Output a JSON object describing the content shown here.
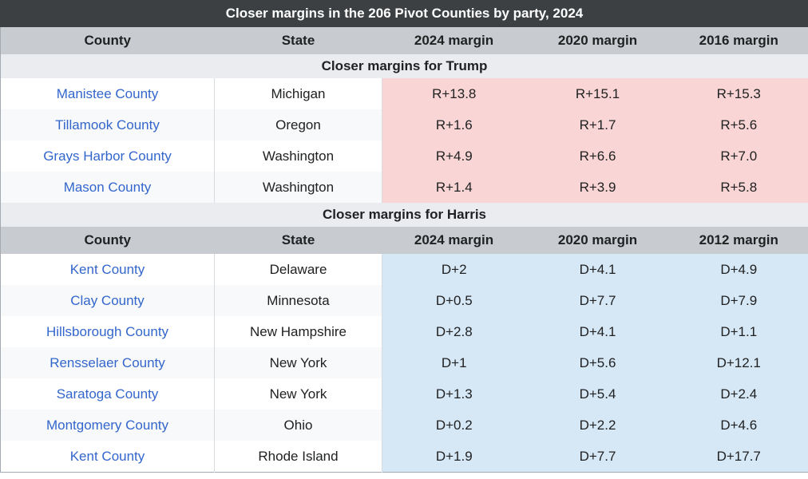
{
  "table": {
    "caption": "Closer margins in the 206 Pivot Counties by party, 2024",
    "header1": [
      "County",
      "State",
      "2024 margin",
      "2020 margin",
      "2016 margin"
    ],
    "section1": "Closer margins for Trump",
    "trump_rows": [
      {
        "county": "Manistee County",
        "state": "Michigan",
        "m2024": "R+13.8",
        "m2020": "R+15.1",
        "m_prev": "R+15.3"
      },
      {
        "county": "Tillamook County",
        "state": "Oregon",
        "m2024": "R+1.6",
        "m2020": "R+1.7",
        "m_prev": "R+5.6"
      },
      {
        "county": "Grays Harbor County",
        "state": "Washington",
        "m2024": "R+4.9",
        "m2020": "R+6.6",
        "m_prev": "R+7.0"
      },
      {
        "county": "Mason County",
        "state": "Washington",
        "m2024": "R+1.4",
        "m2020": "R+3.9",
        "m_prev": "R+5.8"
      }
    ],
    "section2": "Closer margins for Harris",
    "header2": [
      "County",
      "State",
      "2024 margin",
      "2020 margin",
      "2012 margin"
    ],
    "harris_rows": [
      {
        "county": "Kent County",
        "state": "Delaware",
        "m2024": "D+2",
        "m2020": "D+4.1",
        "m_prev": "D+4.9"
      },
      {
        "county": "Clay County",
        "state": "Minnesota",
        "m2024": "D+0.5",
        "m2020": "D+7.7",
        "m_prev": "D+7.9"
      },
      {
        "county": "Hillsborough County",
        "state": "New Hampshire",
        "m2024": "D+2.8",
        "m2020": "D+4.1",
        "m_prev": "D+1.1"
      },
      {
        "county": "Rensselaer County",
        "state": "New York",
        "m2024": "D+1",
        "m2020": "D+5.6",
        "m_prev": "D+12.1"
      },
      {
        "county": "Saratoga County",
        "state": "New York",
        "m2024": "D+1.3",
        "m2020": "D+5.4",
        "m_prev": "D+2.4"
      },
      {
        "county": "Montgomery County",
        "state": "Ohio",
        "m2024": "D+0.2",
        "m2020": "D+2.2",
        "m_prev": "D+4.6"
      },
      {
        "county": "Kent County",
        "state": "Rhode Island",
        "m2024": "D+1.9",
        "m2020": "D+7.7",
        "m_prev": "D+17.7"
      }
    ]
  },
  "colors": {
    "caption_bg": "#3c4043",
    "header_bg": "#c8ccd1",
    "section_bg": "#eaecf0",
    "trump_fill": "#f9d6d5",
    "harris_fill": "#d6e7f5",
    "link": "#3366cc"
  }
}
